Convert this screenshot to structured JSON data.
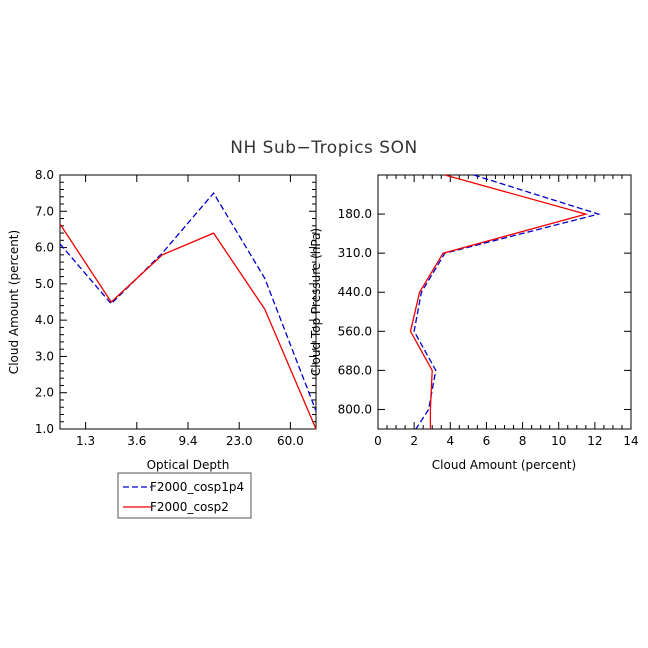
{
  "title": "NH Sub−Tropics SON",
  "colors": {
    "cosp1p4": "#0000cc",
    "cosp2": "#ee0000"
  },
  "legend": [
    "F2000_cosp1p4",
    "F2000_cosp2"
  ],
  "chart_data": [
    {
      "type": "line",
      "xlabel": "Optical Depth",
      "ylabel": "Cloud Amount (percent)",
      "x_tick_labels": [
        "1.3",
        "3.6",
        "9.4",
        "23.0",
        "60.0"
      ],
      "x_tick_positions": [
        0.5,
        1.5,
        2.5,
        3.5,
        4.5
      ],
      "xlim": [
        0,
        5
      ],
      "ylim": [
        1.0,
        8.0
      ],
      "y_ticks": [
        "1.0",
        "2.0",
        "3.0",
        "4.0",
        "5.0",
        "6.0",
        "7.0",
        "8.0"
      ],
      "x": [
        0,
        1,
        2,
        3,
        4,
        5
      ],
      "series": [
        {
          "name": "F2000_cosp1p4",
          "style": "dashed",
          "values": [
            6.1,
            4.45,
            5.85,
            7.5,
            5.15,
            1.5
          ]
        },
        {
          "name": "F2000_cosp2",
          "style": "solid",
          "values": [
            6.65,
            4.5,
            5.8,
            6.4,
            4.3,
            1.0
          ]
        }
      ]
    },
    {
      "type": "line",
      "xlabel": "Cloud Amount (percent)",
      "ylabel": "Cloud Top Pressure (hPa)",
      "xlim": [
        0,
        14
      ],
      "x_ticks": [
        "0",
        "2",
        "4",
        "6",
        "8",
        "10",
        "12",
        "14"
      ],
      "y_tick_labels": [
        "180.0",
        "310.0",
        "440.0",
        "560.0",
        "680.0",
        "800.0"
      ],
      "y_tick_positions": [
        1,
        2,
        3,
        4,
        5,
        6
      ],
      "ylim": [
        0,
        6.5
      ],
      "y_inverted": true,
      "y": [
        0,
        1,
        2,
        3,
        4,
        5,
        6,
        6.5
      ],
      "series": [
        {
          "name": "F2000_cosp1p4",
          "style": "dashed",
          "values": [
            5.3,
            12.2,
            3.7,
            2.4,
            2.0,
            3.2,
            2.8,
            2.1
          ]
        },
        {
          "name": "F2000_cosp2",
          "style": "solid",
          "values": [
            3.7,
            11.5,
            3.6,
            2.3,
            1.8,
            3.0,
            2.9,
            2.9
          ]
        }
      ]
    }
  ]
}
